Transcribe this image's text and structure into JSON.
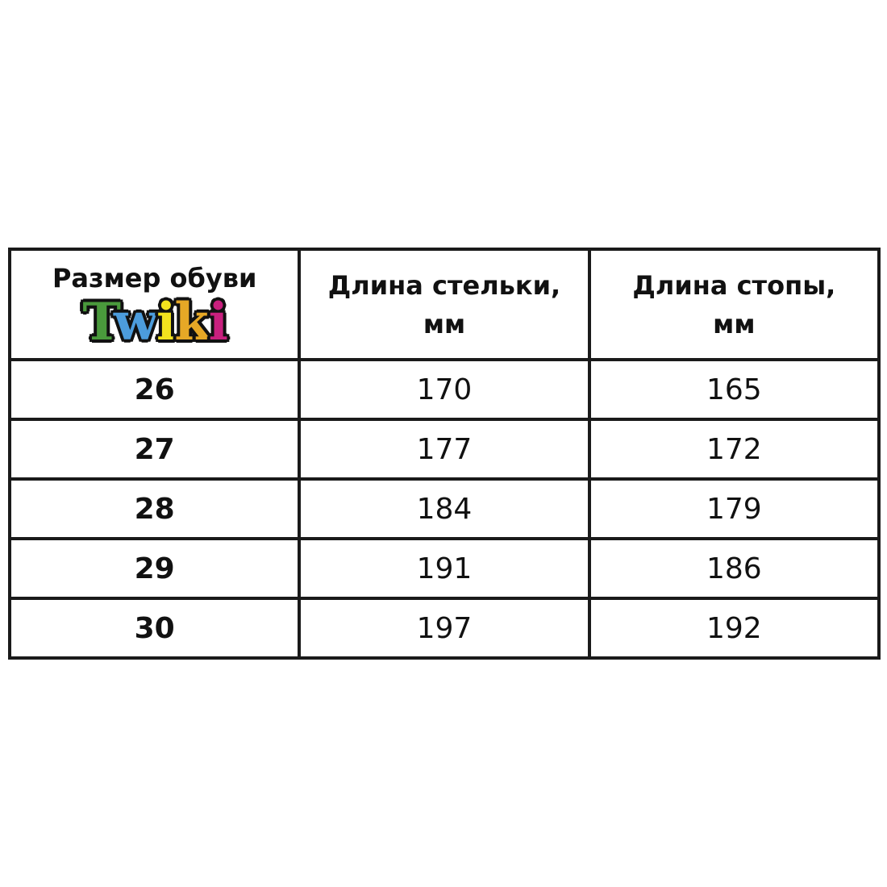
{
  "header": {
    "col1": "Размер обуви",
    "col2_line1": "Длина стельки,",
    "col2_line2": "мм",
    "col3_line1": "Длина стопы,",
    "col3_line2": "мм",
    "logo": {
      "text": "Twiki",
      "letters": [
        {
          "ch": "T",
          "color": "#4a9a3c"
        },
        {
          "ch": "w",
          "color": "#4c9cdc"
        },
        {
          "ch": "i",
          "color": "#f2e21e"
        },
        {
          "ch": "k",
          "color": "#e6a826"
        },
        {
          "ch": "i",
          "color": "#c8207e"
        }
      ]
    }
  },
  "rows": [
    {
      "size": "26",
      "insole": "170",
      "foot": "165"
    },
    {
      "size": "27",
      "insole": "177",
      "foot": "172"
    },
    {
      "size": "28",
      "insole": "184",
      "foot": "179"
    },
    {
      "size": "29",
      "insole": "191",
      "foot": "186"
    },
    {
      "size": "30",
      "insole": "197",
      "foot": "192"
    }
  ]
}
